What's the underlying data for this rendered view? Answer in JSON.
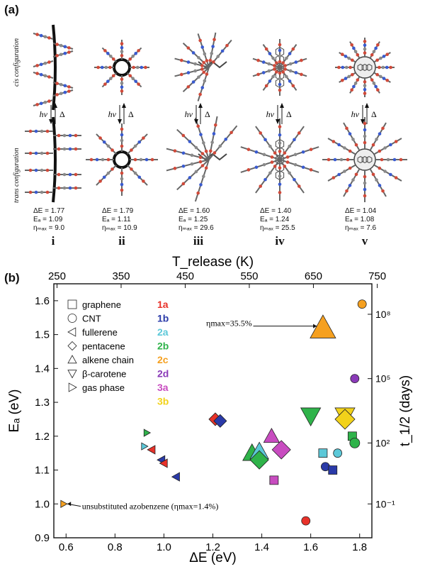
{
  "panel_a": {
    "label": "(a)",
    "cis_label": "cis configuration",
    "trans_label": "trans configuration",
    "hv": "hv",
    "delta": "Δ",
    "columns": [
      {
        "roman": "i",
        "dE": "ΔE = 1.77",
        "Ea": "Eₐ = 1.09",
        "eta": "ηₘₐₓ = 9.0",
        "shape": "cnt-side"
      },
      {
        "roman": "ii",
        "dE": "ΔE = 1.79",
        "Ea": "Eₐ = 1.11",
        "eta": "ηₘₐₓ = 10.9",
        "shape": "cnt-ring"
      },
      {
        "roman": "iii",
        "dE": "ΔE = 1.60",
        "Ea": "Eₐ = 1.25",
        "eta": "ηₘₐₓ = 29.6",
        "shape": "chain"
      },
      {
        "roman": "iv",
        "dE": "ΔE = 1.40",
        "Ea": "Eₐ = 1.24",
        "eta": "ηₘₐₓ = 25.5",
        "shape": "pentacene"
      },
      {
        "roman": "v",
        "dE": "ΔE = 1.04",
        "Ea": "Eₐ = 1.08",
        "eta": "ηₘₐₓ = 7.6",
        "shape": "fullerene"
      }
    ]
  },
  "panel_b": {
    "label": "(b)"
  },
  "chart_data": {
    "type": "scatter",
    "xlabel": "ΔE (eV)",
    "ylabel": "Eₐ (eV)",
    "top_xlabel": "T_release (K)",
    "right_ylabel": "t_1/2 (days)",
    "xlim": [
      0.55,
      1.85
    ],
    "ylim": [
      0.9,
      1.65
    ],
    "x_ticks": [
      "0.6",
      "0.8",
      "1.0",
      "1.2",
      "1.4",
      "1.6",
      "1.8"
    ],
    "y_ticks": [
      "0.9",
      "1.0",
      "1.1",
      "1.2",
      "1.3",
      "1.4",
      "1.5",
      "1.6"
    ],
    "top_ticks": [
      "250",
      "350",
      "450",
      "550",
      "650",
      "750"
    ],
    "top_tick_x": [
      0.563,
      0.825,
      1.087,
      1.349,
      1.611,
      1.872
    ],
    "right_ticks": [
      {
        "label": "10⁻¹",
        "y": 1.0
      },
      {
        "label": "10²",
        "y": 1.18
      },
      {
        "label": "10⁵",
        "y": 1.37
      },
      {
        "label": "10⁸",
        "y": 1.56
      }
    ],
    "shape_legend": [
      {
        "shape": "square",
        "label": "graphene"
      },
      {
        "shape": "circle",
        "label": "CNT"
      },
      {
        "shape": "tri-left",
        "label": "fullerene"
      },
      {
        "shape": "diamond",
        "label": "pentacene"
      },
      {
        "shape": "tri-up",
        "label": "alkene chain"
      },
      {
        "shape": "tri-down",
        "label": "β-carotene"
      },
      {
        "shape": "tri-right",
        "label": "gas phase"
      }
    ],
    "color_legend": [
      {
        "label": "1a",
        "color": "#e8322a"
      },
      {
        "label": "1b",
        "color": "#2a3aa8"
      },
      {
        "label": "2a",
        "color": "#5cc8d8"
      },
      {
        "label": "2b",
        "color": "#2fb34a"
      },
      {
        "label": "2c",
        "color": "#f5a020"
      },
      {
        "label": "2d",
        "color": "#8a3ab8"
      },
      {
        "label": "3a",
        "color": "#c84cc0"
      },
      {
        "label": "3b",
        "color": "#f2d21a"
      }
    ],
    "annotations": [
      {
        "text": "ηmax=35.5%",
        "x": 1.62,
        "y": 1.52
      },
      {
        "text": "unsubstituted azobenzene (ηmax=1.4%)",
        "x": 0.6,
        "y": 1.0
      }
    ],
    "points": [
      {
        "x": 0.59,
        "y": 1.0,
        "shape": "tri-right",
        "color": "#f5a020",
        "size": 5
      },
      {
        "x": 0.92,
        "y": 1.17,
        "shape": "tri-right",
        "color": "#5cc8d8",
        "size": 5
      },
      {
        "x": 0.93,
        "y": 1.21,
        "shape": "tri-right",
        "color": "#2fb34a",
        "size": 5
      },
      {
        "x": 0.95,
        "y": 1.16,
        "shape": "tri-left",
        "color": "#e8322a",
        "size": 6
      },
      {
        "x": 0.99,
        "y": 1.13,
        "shape": "tri-left",
        "color": "#2a3aa8",
        "size": 6
      },
      {
        "x": 1.0,
        "y": 1.12,
        "shape": "tri-left",
        "color": "#e8322a",
        "size": 6
      },
      {
        "x": 1.05,
        "y": 1.08,
        "shape": "tri-left",
        "color": "#2a3aa8",
        "size": 6
      },
      {
        "x": 1.21,
        "y": 1.25,
        "shape": "diamond",
        "color": "#e8322a",
        "size": 9
      },
      {
        "x": 1.23,
        "y": 1.245,
        "shape": "diamond",
        "color": "#2a3aa8",
        "size": 9
      },
      {
        "x": 1.36,
        "y": 1.15,
        "shape": "tri-up",
        "color": "#2fb34a",
        "size": 13
      },
      {
        "x": 1.39,
        "y": 1.155,
        "shape": "tri-up",
        "color": "#5cc8d8",
        "size": 13
      },
      {
        "x": 1.39,
        "y": 1.13,
        "shape": "diamond",
        "color": "#2fb34a",
        "size": 13
      },
      {
        "x": 1.44,
        "y": 1.2,
        "shape": "tri-up",
        "color": "#c84cc0",
        "size": 11
      },
      {
        "x": 1.48,
        "y": 1.16,
        "shape": "diamond",
        "color": "#c84cc0",
        "size": 13
      },
      {
        "x": 1.45,
        "y": 1.07,
        "shape": "square",
        "color": "#c84cc0",
        "size": 6
      },
      {
        "x": 1.58,
        "y": 0.95,
        "shape": "circle",
        "color": "#e8322a",
        "size": 6
      },
      {
        "x": 1.6,
        "y": 1.26,
        "shape": "tri-down",
        "color": "#2fb34a",
        "size": 14
      },
      {
        "x": 1.65,
        "y": 1.52,
        "shape": "tri-up",
        "color": "#f5a020",
        "size": 18
      },
      {
        "x": 1.65,
        "y": 1.15,
        "shape": "square",
        "color": "#5cc8d8",
        "size": 6
      },
      {
        "x": 1.66,
        "y": 1.11,
        "shape": "circle",
        "color": "#2a3aa8",
        "size": 6
      },
      {
        "x": 1.69,
        "y": 1.1,
        "shape": "square",
        "color": "#2a3aa8",
        "size": 6
      },
      {
        "x": 1.71,
        "y": 1.15,
        "shape": "circle",
        "color": "#5cc8d8",
        "size": 6
      },
      {
        "x": 1.74,
        "y": 1.26,
        "shape": "tri-down",
        "color": "#f2d21a",
        "size": 14
      },
      {
        "x": 1.74,
        "y": 1.25,
        "shape": "diamond",
        "color": "#f2d21a",
        "size": 14
      },
      {
        "x": 1.77,
        "y": 1.2,
        "shape": "square",
        "color": "#2fb34a",
        "size": 6
      },
      {
        "x": 1.78,
        "y": 1.18,
        "shape": "circle",
        "color": "#2fb34a",
        "size": 7
      },
      {
        "x": 1.78,
        "y": 1.37,
        "shape": "circle",
        "color": "#8a3ab8",
        "size": 6
      },
      {
        "x": 1.81,
        "y": 1.59,
        "shape": "circle",
        "color": "#f5a020",
        "size": 6
      }
    ]
  }
}
